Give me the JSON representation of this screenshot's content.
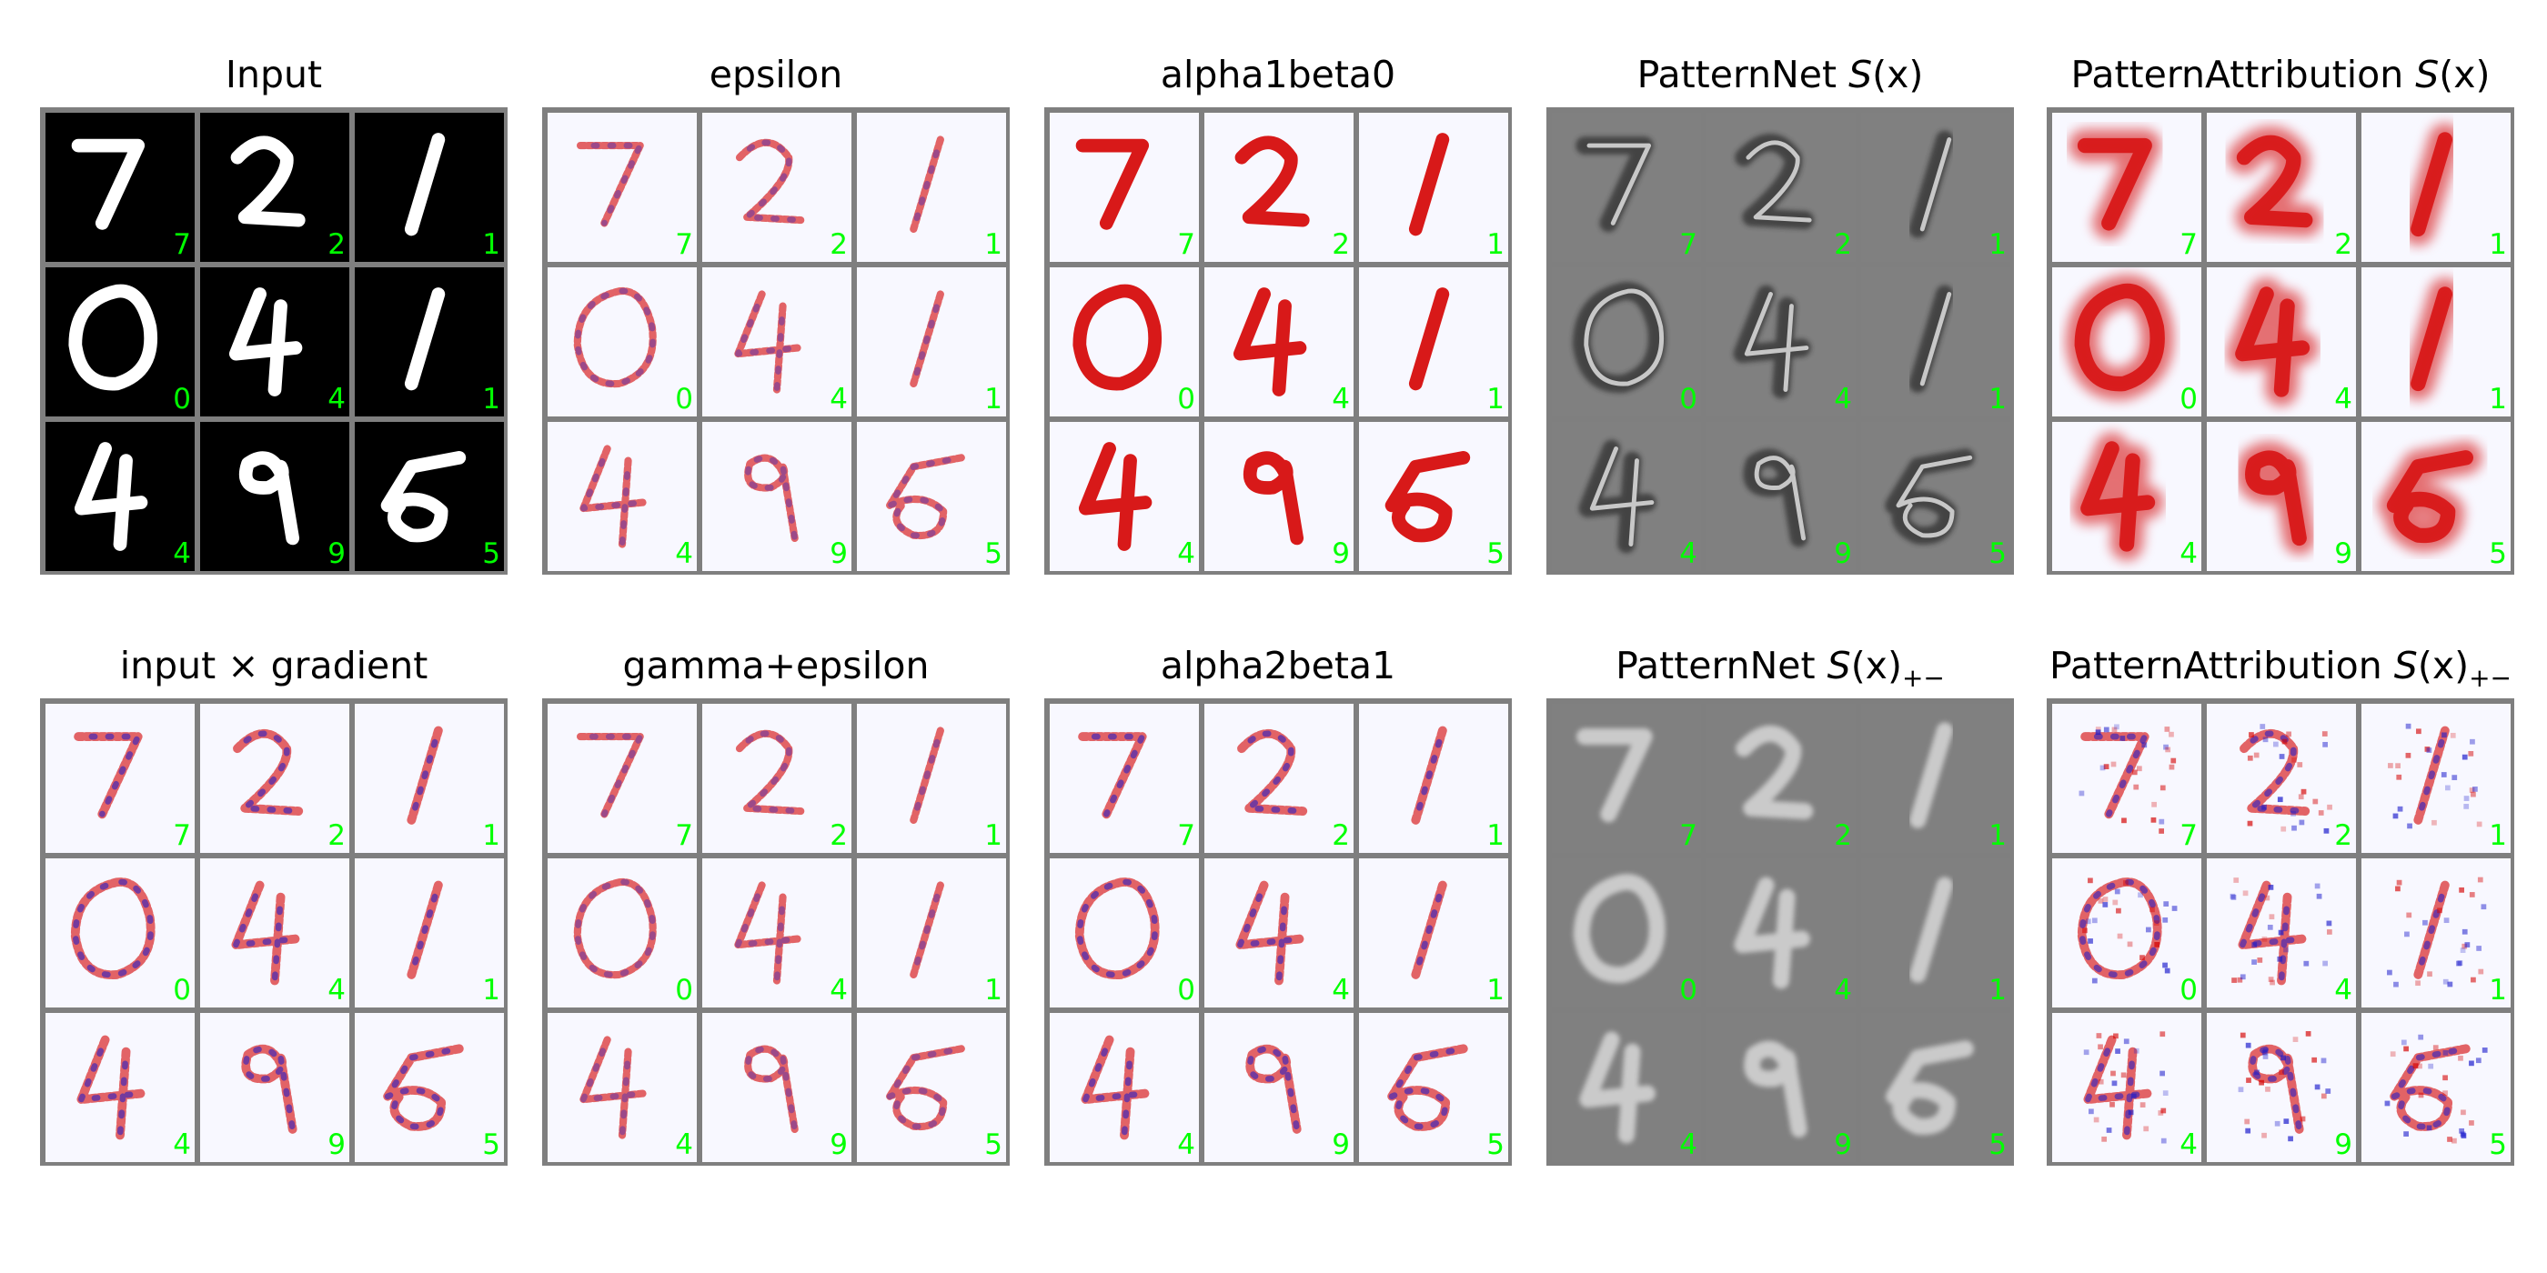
{
  "figure": {
    "digits": [
      "7",
      "2",
      "1",
      "0",
      "4",
      "1",
      "4",
      "9",
      "5"
    ],
    "panels": [
      {
        "key": "input",
        "title": "Input",
        "style": "input"
      },
      {
        "key": "epsilon",
        "title": "epsilon",
        "style": "mixed"
      },
      {
        "key": "alpha1beta0",
        "title": "alpha1beta0",
        "style": "red"
      },
      {
        "key": "patternnet",
        "title_prefix": "PatternNet",
        "title_symbol": "S",
        "title_arg": "(x)",
        "style": "gray_dark"
      },
      {
        "key": "patternattribution",
        "title_prefix": "PatternAttribution",
        "title_symbol": "S",
        "title_arg": "(x)",
        "style": "blob"
      },
      {
        "key": "input_x_gradient",
        "title": "input × gradient",
        "style": "mixed_heavy"
      },
      {
        "key": "gamma_epsilon",
        "title": "gamma+epsilon",
        "style": "mixed"
      },
      {
        "key": "alpha2beta1",
        "title": "alpha2beta1",
        "style": "mixed_heavy"
      },
      {
        "key": "patternnet_pm",
        "title_prefix": "PatternNet",
        "title_symbol": "S",
        "title_arg": "(x)",
        "title_sub": "+−",
        "style": "gray_light"
      },
      {
        "key": "patternattribution_pm",
        "title_prefix": "PatternAttribution",
        "title_symbol": "S",
        "title_arg": "(x)",
        "title_sub": "+−",
        "style": "mixed_noisy"
      }
    ],
    "colors": {
      "frame": "#7f7f7f",
      "label": "#00ff00",
      "heat_background": "#f8f8ff",
      "positive": "#d40000",
      "negative": "#1a1acc",
      "input_background": "#000000",
      "input_stroke": "#ffffff",
      "pattern_background": "#808080"
    }
  }
}
